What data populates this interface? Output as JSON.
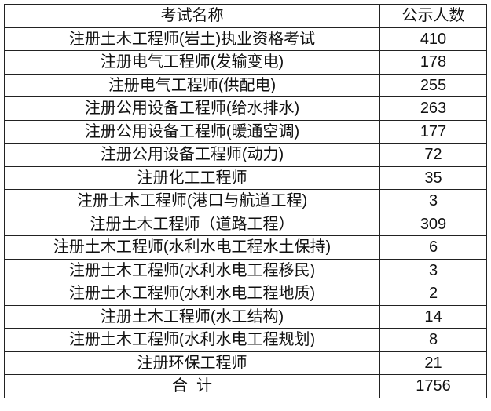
{
  "header": {
    "name": "考试名称",
    "count": "公示人数"
  },
  "rows": [
    {
      "name": "注册土木工程师(岩土)执业资格考试",
      "count": "410"
    },
    {
      "name": "注册电气工程师(发输变电)",
      "count": "178"
    },
    {
      "name": "注册电气工程师(供配电)",
      "count": "255"
    },
    {
      "name": "注册公用设备工程师(给水排水)",
      "count": "263"
    },
    {
      "name": "注册公用设备工程师(暖通空调)",
      "count": "177"
    },
    {
      "name": "注册公用设备工程师(动力)",
      "count": "72"
    },
    {
      "name": "注册化工工程师",
      "count": "35"
    },
    {
      "name": "注册土木工程师(港口与航道工程)",
      "count": "3"
    },
    {
      "name": "注册土木工程师（道路工程）",
      "count": "309"
    },
    {
      "name": "注册土木工程师(水利水电工程水土保持)",
      "count": "6"
    },
    {
      "name": "注册土木工程师(水利水电工程移民)",
      "count": "3"
    },
    {
      "name": "注册土木工程师(水利水电工程地质)",
      "count": "2"
    },
    {
      "name": "注册土木工程师(水工结构)",
      "count": "14"
    },
    {
      "name": "注册土木工程师(水利水电工程规划)",
      "count": "8"
    },
    {
      "name": "注册环保工程师",
      "count": "21"
    }
  ],
  "total": {
    "name": "合  计",
    "count": "1756"
  }
}
